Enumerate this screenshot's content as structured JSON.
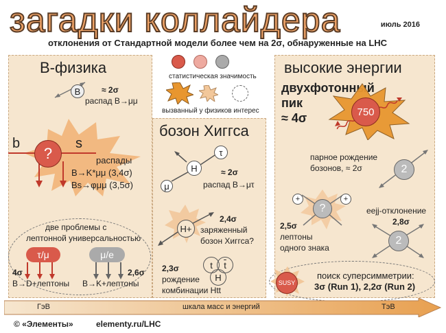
{
  "header": {
    "title": "загадки коллайдера",
    "date": "июль 2016",
    "subtitle": "отклонения от Стандартной модели более чем на 2σ, обнаруженные на LHC"
  },
  "legend": {
    "significance": "статистическая значимость",
    "interest": "вызванный у физиков интерес"
  },
  "bphysics": {
    "heading": "B-физика",
    "b_particle": "B",
    "b_sigma": "≈ 2σ",
    "b_decay": "распад B→μμ",
    "quark_b": "b",
    "quark_s": "s",
    "question": "?",
    "decays_title": "распады",
    "decay1": "B→K*μμ (3,4σ)",
    "decay2": "Bs→φμμ (3,5σ)",
    "lepton_title1": "две проблемы с",
    "lepton_title2": "лептонной универсальностью",
    "tau_mu": "τ/μ",
    "mu_e": "μ/e",
    "sigma1": "4σ",
    "decay3": "B→D+лептоны",
    "sigma2": "2,6σ",
    "decay4": "B→K+лептоны"
  },
  "higgs": {
    "heading": "бозон Хиггса",
    "h": "H",
    "tau": "τ",
    "mu": "μ",
    "sigma": "≈ 2σ",
    "decay": "распад B→μτ",
    "hplus": "H+",
    "charged_sigma": "2,4σ",
    "charged1": "заряженный",
    "charged2": "бозон Хиггса?",
    "htt_sigma": "2,3σ",
    "htt1": "рождение",
    "htt2": "комбинации Htt",
    "t1": "t",
    "t2": "t",
    "h2": "H"
  },
  "high": {
    "heading": "высокие энергии",
    "diphoton1": "двухфотонный",
    "diphoton2": "пик",
    "diphoton3": "≈ 4σ",
    "mass": "750",
    "pair1": "парное рождение",
    "pair2": "бозонов, ≈ 2σ",
    "two1": "2",
    "lep_sigma": "2,5σ",
    "lep1": "лептоны",
    "lep2": "одного знака",
    "plus1": "+",
    "plus2": "+",
    "qmark": "?",
    "eejj1": "eejj-отклонение",
    "eejj2": "2,8σ",
    "two2": "2",
    "susy": "SUSY",
    "susy1": "поиск суперсимметрии:",
    "susy2": "3σ (Run 1), 2,2σ (Run 2)"
  },
  "scale": {
    "left": "ГэВ",
    "center": "шкала масс и энергий",
    "right": "ТэВ"
  },
  "footer": {
    "left": "© «Элементы»",
    "right": "elementy.ru/LHC"
  }
}
